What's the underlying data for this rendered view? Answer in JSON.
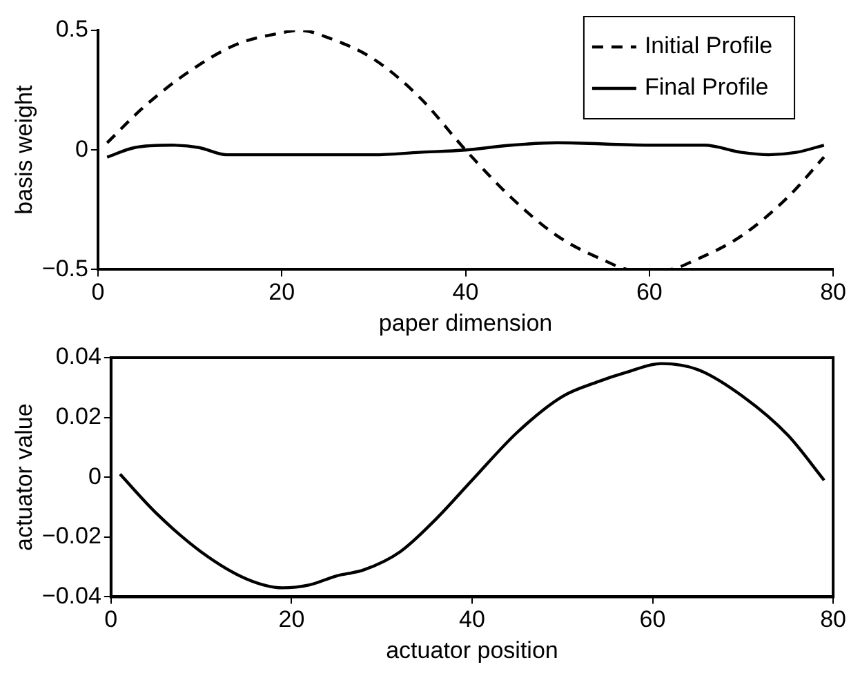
{
  "chart_data": [
    {
      "type": "line",
      "xlabel": "paper dimension",
      "ylabel": "basis weight",
      "xlim": [
        0,
        80
      ],
      "xticks": [
        0,
        20,
        40,
        60,
        80
      ],
      "ylim": [
        -0.5,
        0.5
      ],
      "yticks": [
        -0.5,
        0,
        0.5
      ],
      "legend": "top right",
      "grid": false,
      "series": [
        {
          "name": "Initial Profile",
          "color": "#000000",
          "line_style": "dashed",
          "x": [
            1,
            5,
            10,
            15,
            20,
            22,
            25,
            30,
            35,
            40,
            45,
            50,
            55,
            58,
            62,
            65,
            70,
            75,
            79
          ],
          "values": [
            0.03,
            0.18,
            0.33,
            0.44,
            0.49,
            0.5,
            0.47,
            0.38,
            0.22,
            0.0,
            -0.2,
            -0.36,
            -0.46,
            -0.5,
            -0.5,
            -0.46,
            -0.36,
            -0.2,
            -0.03
          ]
        },
        {
          "name": "Final Profile",
          "color": "#000000",
          "line_style": "solid",
          "x": [
            1,
            4,
            8,
            11,
            14,
            20,
            30,
            35,
            40,
            45,
            50,
            60,
            66,
            70,
            73,
            76,
            79
          ],
          "values": [
            -0.03,
            0.01,
            0.02,
            0.01,
            -0.02,
            -0.02,
            -0.02,
            -0.01,
            0.0,
            0.02,
            0.03,
            0.02,
            0.02,
            -0.01,
            -0.02,
            -0.01,
            0.02
          ]
        }
      ]
    },
    {
      "type": "line",
      "xlabel": "actuator position",
      "ylabel": "actuator value",
      "xlim": [
        0,
        80
      ],
      "xticks": [
        0,
        20,
        40,
        60,
        80
      ],
      "ylim": [
        -0.04,
        0.04
      ],
      "yticks": [
        -0.04,
        -0.02,
        0,
        0.02,
        0.04
      ],
      "grid": false,
      "series": [
        {
          "color": "#000000",
          "line_style": "solid",
          "x": [
            1,
            5,
            10,
            15,
            19,
            22,
            25,
            28,
            32,
            36,
            40,
            45,
            50,
            54,
            57,
            61,
            65,
            70,
            75,
            79
          ],
          "values": [
            0.001,
            -0.012,
            -0.025,
            -0.034,
            -0.037,
            -0.036,
            -0.033,
            -0.031,
            -0.025,
            -0.014,
            -0.001,
            0.015,
            0.027,
            0.032,
            0.035,
            0.038,
            0.036,
            0.027,
            0.014,
            -0.001
          ]
        }
      ]
    }
  ]
}
